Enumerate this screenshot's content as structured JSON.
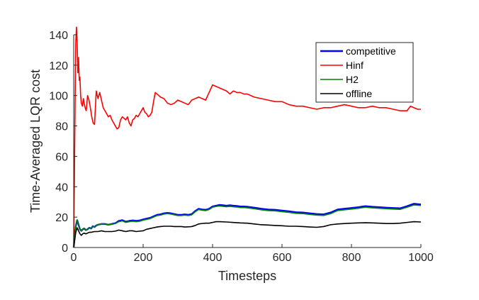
{
  "chart_data": {
    "type": "line",
    "title": "",
    "xlabel": "Timesteps",
    "ylabel": "Time-Averaged LQR cost",
    "xlim": [
      0,
      1000
    ],
    "ylim": [
      0,
      140
    ],
    "xticks": [
      0,
      200,
      400,
      600,
      800,
      1000
    ],
    "yticks": [
      0,
      20,
      40,
      60,
      80,
      100,
      120,
      140
    ],
    "grid": false,
    "legend_position": "top-right",
    "series": [
      {
        "name": "competitive",
        "color": "#0000ff",
        "x": [
          0,
          3,
          6,
          10,
          14,
          18,
          22,
          26,
          30,
          35,
          40,
          45,
          50,
          55,
          60,
          65,
          70,
          80,
          90,
          100,
          110,
          120,
          130,
          140,
          150,
          160,
          170,
          180,
          190,
          200,
          210,
          220,
          230,
          240,
          250,
          260,
          270,
          280,
          290,
          300,
          310,
          320,
          330,
          340,
          350,
          360,
          370,
          380,
          390,
          400,
          410,
          420,
          430,
          440,
          450,
          460,
          470,
          480,
          490,
          500,
          520,
          540,
          560,
          580,
          600,
          620,
          640,
          660,
          680,
          700,
          720,
          740,
          760,
          780,
          800,
          820,
          840,
          860,
          880,
          900,
          920,
          940,
          960,
          980,
          1000
        ],
        "values": [
          0,
          8,
          14,
          18,
          15,
          12,
          11,
          12,
          12.5,
          11.5,
          12,
          13,
          12.5,
          14,
          13.5,
          14.5,
          15,
          15.5,
          15.5,
          15,
          15.5,
          16,
          17.5,
          18,
          17,
          17.5,
          17.8,
          17.5,
          17.8,
          18.5,
          19,
          19.5,
          20.5,
          21.5,
          21.8,
          22.5,
          22.8,
          22.5,
          22,
          21.5,
          21.5,
          21.8,
          21.5,
          22,
          24,
          25.5,
          25,
          24.8,
          25.5,
          27,
          27.5,
          28,
          27.8,
          27.5,
          27.8,
          27.5,
          27.3,
          27,
          27,
          26.8,
          26.2,
          25.5,
          25,
          24.8,
          24.3,
          23.8,
          23.2,
          23,
          22.5,
          22,
          21.8,
          23,
          25,
          25.5,
          26,
          26.5,
          27.2,
          26.8,
          26.5,
          26.2,
          26,
          25.8,
          27.2,
          28.8,
          28.3
        ]
      },
      {
        "name": "Hinf",
        "color": "#ff0000",
        "x": [
          0,
          2,
          4,
          6,
          8,
          10,
          12,
          14,
          16,
          18,
          20,
          22,
          25,
          28,
          30,
          33,
          36,
          40,
          44,
          48,
          52,
          56,
          60,
          65,
          70,
          75,
          80,
          85,
          90,
          95,
          100,
          105,
          110,
          115,
          120,
          125,
          130,
          135,
          140,
          145,
          150,
          155,
          160,
          165,
          170,
          175,
          180,
          185,
          190,
          195,
          200,
          205,
          210,
          215,
          220,
          225,
          230,
          235,
          240,
          250,
          260,
          270,
          280,
          290,
          300,
          310,
          320,
          330,
          340,
          350,
          360,
          370,
          380,
          390,
          400,
          410,
          420,
          430,
          440,
          450,
          460,
          470,
          480,
          490,
          500,
          520,
          540,
          560,
          580,
          600,
          620,
          640,
          660,
          680,
          700,
          720,
          740,
          760,
          780,
          800,
          820,
          840,
          860,
          880,
          900,
          920,
          940,
          960,
          970,
          980,
          990,
          1000
        ],
        "values": [
          0,
          45,
          95,
          135,
          145,
          135,
          115,
          125,
          110,
          112,
          100,
          95,
          93,
          98,
          95,
          92,
          90,
          100,
          97,
          92,
          86,
          82,
          81,
          103,
          98,
          102,
          97,
          92,
          90,
          88,
          86,
          87,
          84,
          82,
          80,
          78,
          79,
          84,
          86,
          85,
          84,
          86,
          82,
          80,
          84,
          85,
          87,
          86,
          88,
          90,
          92,
          89,
          88,
          86,
          87,
          89,
          96,
          102,
          101,
          99,
          98,
          95,
          94,
          95,
          97,
          96,
          95,
          94,
          97,
          98,
          99,
          98,
          97,
          102,
          107,
          106,
          105,
          104,
          103,
          101,
          103,
          102,
          102,
          101,
          101,
          99,
          98,
          97,
          96,
          96,
          94,
          93,
          93,
          92,
          91,
          92,
          92,
          93,
          94,
          93,
          92,
          92,
          93,
          92,
          92,
          91,
          90,
          90,
          93,
          92,
          91,
          91
        ]
      },
      {
        "name": "H2",
        "color": "#008000",
        "x": [
          0,
          3,
          6,
          10,
          14,
          18,
          22,
          26,
          30,
          35,
          40,
          45,
          50,
          55,
          60,
          65,
          70,
          80,
          90,
          100,
          110,
          120,
          130,
          140,
          150,
          160,
          170,
          180,
          190,
          200,
          210,
          220,
          230,
          240,
          250,
          260,
          270,
          280,
          290,
          300,
          310,
          320,
          330,
          340,
          350,
          360,
          370,
          380,
          390,
          400,
          410,
          420,
          430,
          440,
          450,
          460,
          470,
          480,
          490,
          500,
          520,
          540,
          560,
          580,
          600,
          620,
          640,
          660,
          680,
          700,
          720,
          740,
          760,
          780,
          800,
          820,
          840,
          860,
          880,
          900,
          920,
          940,
          960,
          980,
          1000
        ],
        "values": [
          0,
          8,
          14,
          18,
          15,
          12,
          11,
          12,
          12.5,
          11.5,
          12,
          13,
          12.5,
          14,
          13.5,
          14.5,
          15,
          15.5,
          15.5,
          15,
          15.3,
          15.8,
          17,
          17.5,
          16.5,
          17,
          17.3,
          17,
          17.3,
          18,
          18.5,
          19,
          20,
          21,
          21.3,
          22,
          22.3,
          22,
          21.5,
          21,
          21,
          21.3,
          21,
          21.5,
          23.5,
          25,
          24.5,
          24.3,
          25,
          26.5,
          27,
          27.3,
          27.1,
          26.8,
          27.1,
          26.8,
          26.6,
          26.3,
          26.3,
          26.1,
          25.5,
          24.8,
          24.3,
          24.1,
          23.6,
          23.1,
          22.5,
          22.3,
          21.8,
          21.3,
          21.1,
          22.3,
          24.3,
          24.8,
          25.3,
          25.8,
          26.5,
          26.1,
          25.8,
          25.5,
          25.3,
          25.1,
          26.5,
          28,
          27.6
        ]
      },
      {
        "name": "offline",
        "color": "#000000",
        "x": [
          0,
          3,
          6,
          10,
          14,
          18,
          22,
          26,
          30,
          35,
          40,
          45,
          50,
          60,
          70,
          80,
          90,
          100,
          110,
          120,
          130,
          140,
          150,
          160,
          170,
          180,
          190,
          200,
          210,
          220,
          230,
          240,
          250,
          260,
          270,
          280,
          290,
          300,
          310,
          320,
          330,
          340,
          350,
          360,
          370,
          380,
          390,
          400,
          410,
          420,
          440,
          460,
          480,
          500,
          520,
          540,
          560,
          580,
          600,
          620,
          640,
          660,
          680,
          700,
          720,
          740,
          760,
          780,
          800,
          820,
          840,
          860,
          880,
          900,
          920,
          940,
          960,
          980,
          1000
        ],
        "values": [
          0,
          5,
          10,
          13,
          11,
          9,
          8,
          9,
          9.5,
          9,
          9.5,
          10,
          10,
          10.5,
          10.5,
          11,
          10.5,
          10.5,
          10.5,
          10.8,
          11.5,
          11,
          10.5,
          11,
          11,
          10.5,
          10.8,
          11,
          12,
          12.5,
          13,
          13.5,
          13.8,
          14,
          14,
          14,
          13.8,
          13.8,
          13.8,
          13.5,
          13.6,
          13.8,
          14.5,
          15.5,
          15.8,
          16,
          16,
          16.5,
          17,
          17,
          16.8,
          16.5,
          16.2,
          16,
          15.5,
          15,
          14.8,
          14.5,
          14.3,
          14,
          14,
          13.8,
          13.5,
          13.3,
          13.8,
          15,
          15.5,
          15.8,
          16,
          16.2,
          16.3,
          16.2,
          16,
          15.8,
          15.8,
          16,
          16.5,
          17,
          16.8
        ]
      }
    ]
  }
}
